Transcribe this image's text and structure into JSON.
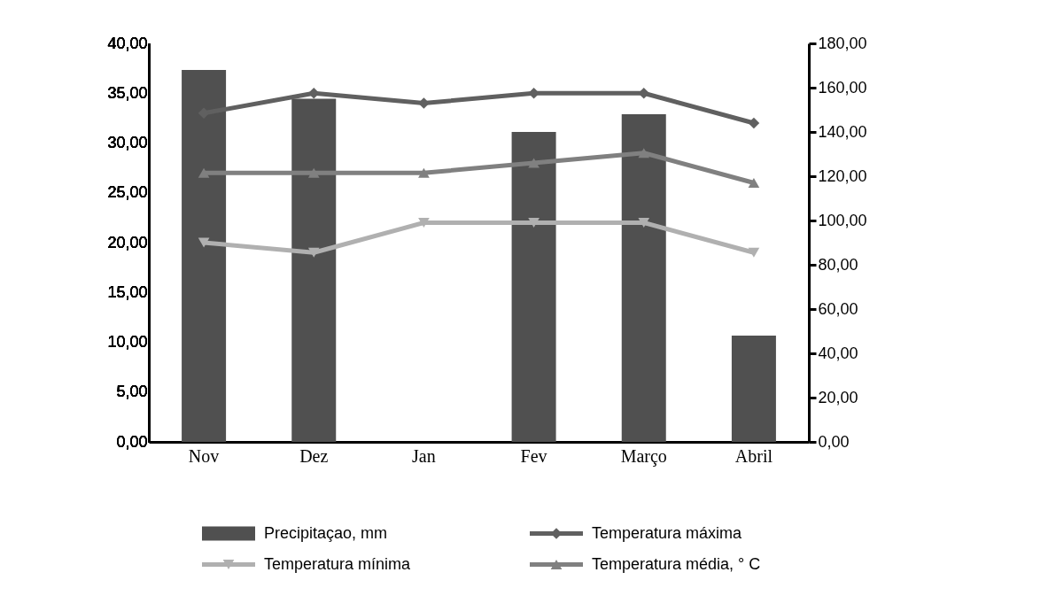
{
  "chart_data": {
    "type": "bar",
    "categories": [
      "Nov",
      "Dez",
      "Jan",
      "Fev",
      "Março",
      "Abril"
    ],
    "series": [
      {
        "name": "Precipitaçao, mm",
        "axis": "y2",
        "color": "#505050",
        "values": [
          168,
          155,
          0,
          140,
          148,
          48
        ]
      },
      {
        "name": "Temperatura máxima",
        "type": "line",
        "marker": "diamond",
        "color": "#606060",
        "values": [
          33,
          35,
          34,
          35,
          35,
          32
        ]
      },
      {
        "name": "Temperatura mínima",
        "type": "line",
        "marker": "triangle-down",
        "color": "#b0b0b0",
        "values": [
          20,
          19,
          22,
          22,
          22,
          19
        ]
      },
      {
        "name": "Temperatura média, ° C",
        "type": "line",
        "marker": "triangle",
        "color": "#808080",
        "values": [
          27,
          27,
          27,
          28,
          29,
          26
        ]
      }
    ],
    "ylim": [
      0,
      40
    ],
    "yticks": [
      {
        "value": 0,
        "label": "0,00"
      },
      {
        "value": 5,
        "label": "5,00"
      },
      {
        "value": 10,
        "label": "10,00"
      },
      {
        "value": 15,
        "label": "15,00"
      },
      {
        "value": 20,
        "label": "20,00"
      },
      {
        "value": 25,
        "label": "25,00"
      },
      {
        "value": 30,
        "label": "30,00"
      },
      {
        "value": 35,
        "label": "35,00"
      },
      {
        "value": 40,
        "label": "40,00"
      }
    ],
    "y2lim": [
      0,
      180
    ],
    "y2ticks": [
      {
        "value": 0,
        "label": "0,00"
      },
      {
        "value": 20,
        "label": "20,00"
      },
      {
        "value": 40,
        "label": "40,00"
      },
      {
        "value": 60,
        "label": "60,00"
      },
      {
        "value": 80,
        "label": "80,00"
      },
      {
        "value": 100,
        "label": "100,00"
      },
      {
        "value": 120,
        "label": "120,00"
      },
      {
        "value": 140,
        "label": "140,00"
      },
      {
        "value": 160,
        "label": "160,00"
      },
      {
        "value": 180,
        "label": "180,00"
      }
    ],
    "grid": false,
    "legend": "bottom",
    "line_style": "solid"
  }
}
